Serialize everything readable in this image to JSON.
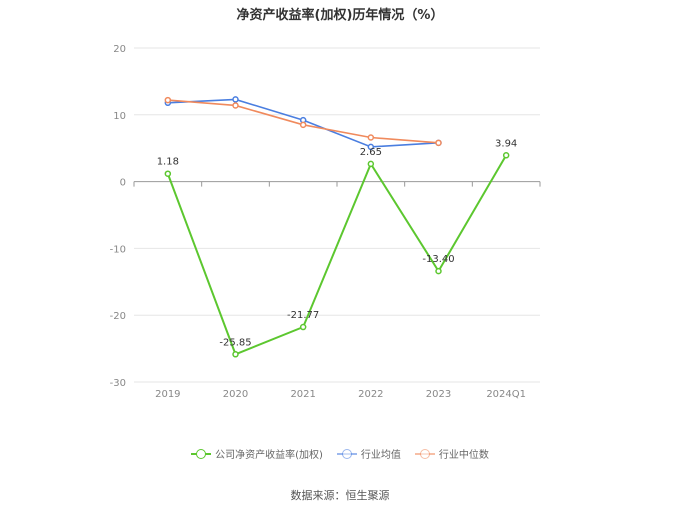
{
  "title": "净资产收益率(加权)历年情况（%）",
  "source": "数据来源：恒生聚源",
  "chart_data": {
    "type": "line",
    "title": "净资产收益率(加权)历年情况（%）",
    "categories": [
      "2019",
      "2020",
      "2021",
      "2022",
      "2023",
      "2024Q1"
    ],
    "ylim": [
      -30,
      20
    ],
    "yticks": [
      20,
      10,
      0,
      -10,
      -20,
      -30
    ],
    "grid": true,
    "legend_position": "bottom",
    "series": [
      {
        "name": "公司净资产收益率(加权)",
        "color": "#5cc72f",
        "values": [
          1.18,
          -25.85,
          -21.77,
          2.65,
          -13.4,
          3.94
        ],
        "labels": [
          "1.18",
          "-25.85",
          "-21.77",
          "2.65",
          "-13.40",
          "3.94"
        ]
      },
      {
        "name": "行业均值",
        "color": "#4a7ee0",
        "values": [
          11.8,
          12.3,
          9.2,
          5.2,
          5.8,
          null
        ]
      },
      {
        "name": "行业中位数",
        "color": "#f08a5d",
        "values": [
          12.2,
          11.4,
          8.5,
          6.6,
          5.8,
          null
        ]
      }
    ]
  }
}
